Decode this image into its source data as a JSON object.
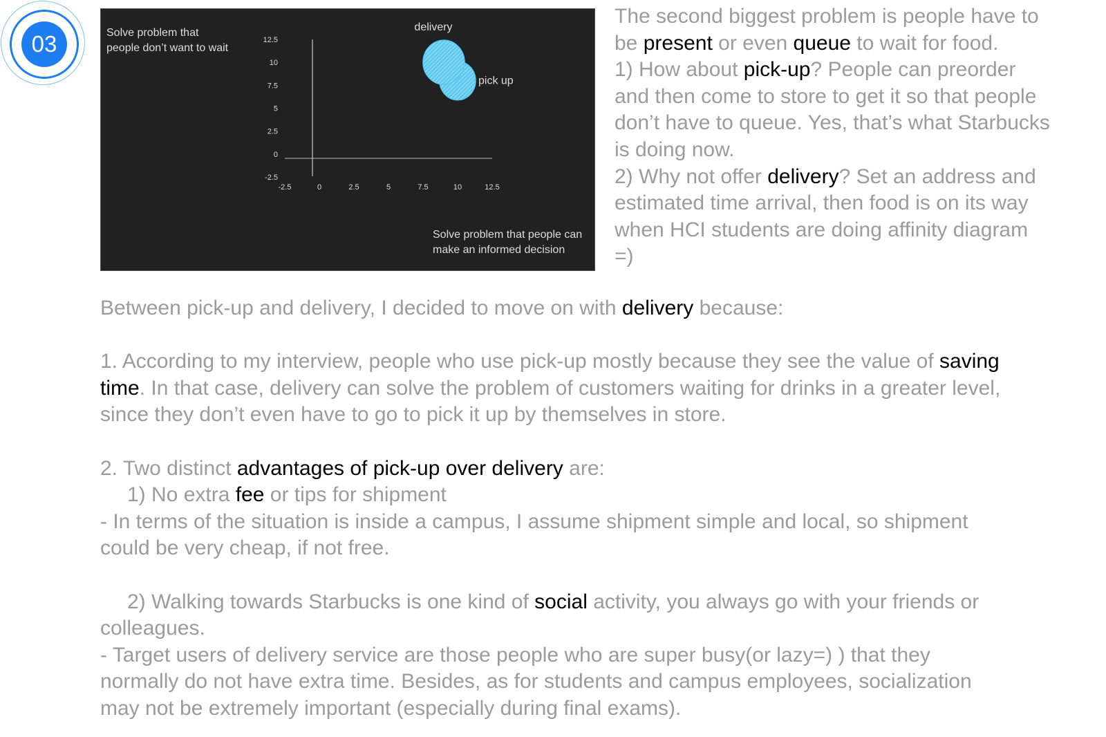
{
  "badge": {
    "number": "03",
    "color": "#1e7ef0"
  },
  "chart_data": {
    "type": "scatter",
    "subtype": "bubble",
    "y_axis_annotation": [
      "Solve problem that",
      "people don’t want to wait"
    ],
    "x_axis_annotation": [
      "Solve problem that people can",
      "make an informed decision"
    ],
    "xlim": [
      -2.5,
      12.5
    ],
    "ylim": [
      -2.5,
      12.5
    ],
    "x_ticks": [
      "-2.5",
      "0",
      "2.5",
      "5",
      "7.5",
      "10",
      "12.5"
    ],
    "y_ticks": [
      "12.5",
      "10",
      "7.5",
      "5",
      "2.5",
      "0",
      "-2.5"
    ],
    "grid": false,
    "background": "#212121",
    "bubble_color": "#5bc8f0",
    "points": [
      {
        "label": "delivery",
        "x": 9,
        "y": 10
      },
      {
        "label": "pick up",
        "x": 10,
        "y": 8
      }
    ]
  },
  "right_text": [
    [
      {
        "t": "The second biggest problem is people have to"
      }
    ],
    [
      {
        "t": "be "
      },
      {
        "t": "present",
        "h": true
      },
      {
        "t": " or even "
      },
      {
        "t": "queue",
        "h": true
      },
      {
        "t": " to wait for food."
      }
    ],
    [
      {
        "t": "1) How about "
      },
      {
        "t": "pick-up",
        "h": true
      },
      {
        "t": "? People can preorder"
      }
    ],
    [
      {
        "t": "and then come to store to get it so that people"
      }
    ],
    [
      {
        "t": "don’t have to queue. Yes, that’s what Starbucks"
      }
    ],
    [
      {
        "t": "is doing now."
      }
    ],
    [
      {
        "t": "2) Why not offer "
      },
      {
        "t": "delivery",
        "h": true
      },
      {
        "t": "? Set an address and"
      }
    ],
    [
      {
        "t": "estimated time arrival, then food is on its way"
      }
    ],
    [
      {
        "t": "when HCI students are doing affinity diagram"
      }
    ],
    [
      {
        "t": "=)"
      }
    ]
  ],
  "bottom_text": [
    [
      {
        "t": "Between pick-up and delivery, I decided to move on with "
      },
      {
        "t": "delivery",
        "h": true
      },
      {
        "t": " because:"
      }
    ],
    [],
    [
      {
        "t": "1. According to my interview, people who use pick-up mostly because they see the value of "
      },
      {
        "t": "saving",
        "h": true
      }
    ],
    [
      {
        "t": "time",
        "h": true
      },
      {
        "t": ". In that case, delivery can solve the problem of customers waiting for drinks in a greater level,"
      }
    ],
    [
      {
        "t": "since they don’t even have to go to pick it up by themselves in store."
      }
    ],
    [],
    [
      {
        "t": "2. Two distinct "
      },
      {
        "t": "advantages of pick-up over delivery",
        "h": true
      },
      {
        "t": " are:"
      }
    ],
    [
      {
        "t": "1) No extra ",
        "i": true
      },
      {
        "t": "fee",
        "h": true
      },
      {
        "t": " or tips for shipment"
      }
    ],
    [
      {
        "t": "- In terms of the situation is inside a campus, I assume shipment simple and local, so shipment"
      }
    ],
    [
      {
        "t": "could be very cheap, if not free."
      }
    ],
    [],
    [
      {
        "t": "2) Walking towards Starbucks is one kind of ",
        "i": true
      },
      {
        "t": "social",
        "h": true
      },
      {
        "t": " activity, you always go with your friends or"
      }
    ],
    [
      {
        "t": "colleagues."
      }
    ],
    [
      {
        "t": "- Target users of delivery service are those people who are super busy(or lazy=) ) that they"
      }
    ],
    [
      {
        "t": "normally do not have extra time. Besides, as for students and campus employees, socialization"
      }
    ],
    [
      {
        "t": "may not be extremely important (especially during final exams)."
      }
    ]
  ]
}
